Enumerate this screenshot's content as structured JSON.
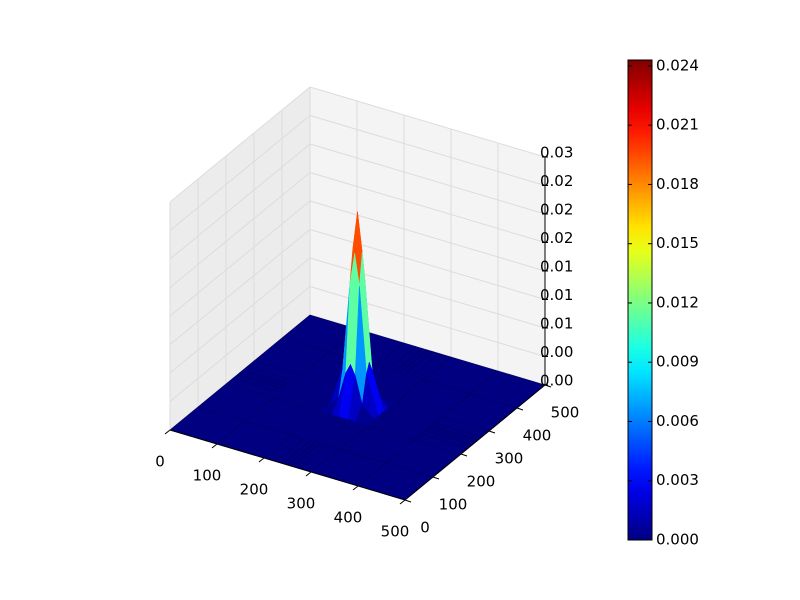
{
  "chart_data": {
    "type": "surface3d",
    "colormap": "jet",
    "grid": true,
    "x": [
      0,
      100,
      200,
      225,
      240,
      250,
      260,
      275,
      300,
      400,
      500
    ],
    "y": [
      0,
      100,
      200,
      225,
      240,
      250,
      260,
      275,
      300,
      400,
      500
    ],
    "z": [
      [
        0,
        0,
        0,
        0,
        0,
        0,
        0,
        0,
        0,
        0,
        0
      ],
      [
        0,
        0,
        0,
        0,
        0,
        0,
        0,
        0,
        0,
        0,
        0
      ],
      [
        0,
        0,
        0,
        2e-05,
        7e-05,
        9e-05,
        7e-05,
        2e-05,
        0,
        0,
        0
      ],
      [
        0,
        0,
        2e-05,
        0.00149,
        0.00478,
        0.00598,
        0.00478,
        0.00149,
        2e-05,
        0,
        0
      ],
      [
        0,
        0,
        7e-05,
        0.00478,
        0.01536,
        0.0192,
        0.01536,
        0.00478,
        7e-05,
        0,
        0
      ],
      [
        0,
        0,
        9e-05,
        0.00598,
        0.0192,
        0.024,
        0.0192,
        0.00598,
        9e-05,
        0,
        0
      ],
      [
        0,
        0,
        7e-05,
        0.00478,
        0.01536,
        0.0192,
        0.01536,
        0.00478,
        7e-05,
        0,
        0
      ],
      [
        0,
        0,
        2e-05,
        0.00149,
        0.00478,
        0.00598,
        0.00478,
        0.00149,
        2e-05,
        0,
        0
      ],
      [
        0,
        0,
        0,
        2e-05,
        7e-05,
        9e-05,
        7e-05,
        2e-05,
        0,
        0,
        0
      ],
      [
        0,
        0,
        0,
        0,
        0,
        0,
        0,
        0,
        0,
        0,
        0
      ],
      [
        0,
        0,
        0,
        0,
        0,
        0,
        0,
        0,
        0,
        0,
        0
      ]
    ],
    "xlim": [
      0,
      500
    ],
    "ylim": [
      0,
      500
    ],
    "zlim": [
      0,
      0.028
    ],
    "xticks": [
      0,
      100,
      200,
      300,
      400,
      500
    ],
    "yticks": [
      0,
      100,
      200,
      300,
      400,
      500
    ],
    "zticks": [
      {
        "value": 0,
        "label": "0.00"
      },
      {
        "value": 0.0035,
        "label": "0.00"
      },
      {
        "value": 0.007,
        "label": "0.01"
      },
      {
        "value": 0.0105,
        "label": "0.01"
      },
      {
        "value": 0.014,
        "label": "0.01"
      },
      {
        "value": 0.0175,
        "label": "0.02"
      },
      {
        "value": 0.021,
        "label": "0.02"
      },
      {
        "value": 0.0245,
        "label": "0.02"
      },
      {
        "value": 0.028,
        "label": "0.03"
      }
    ],
    "colorbar": {
      "clim": [
        0,
        0.0243
      ],
      "ticks": [
        {
          "value": 0,
          "label": "0.000"
        },
        {
          "value": 0.003,
          "label": "0.003"
        },
        {
          "value": 0.006,
          "label": "0.006"
        },
        {
          "value": 0.009,
          "label": "0.009"
        },
        {
          "value": 0.012,
          "label": "0.012"
        },
        {
          "value": 0.015,
          "label": "0.015"
        },
        {
          "value": 0.018,
          "label": "0.018"
        },
        {
          "value": 0.021,
          "label": "0.021"
        },
        {
          "value": 0.024,
          "label": "0.024"
        }
      ]
    }
  }
}
